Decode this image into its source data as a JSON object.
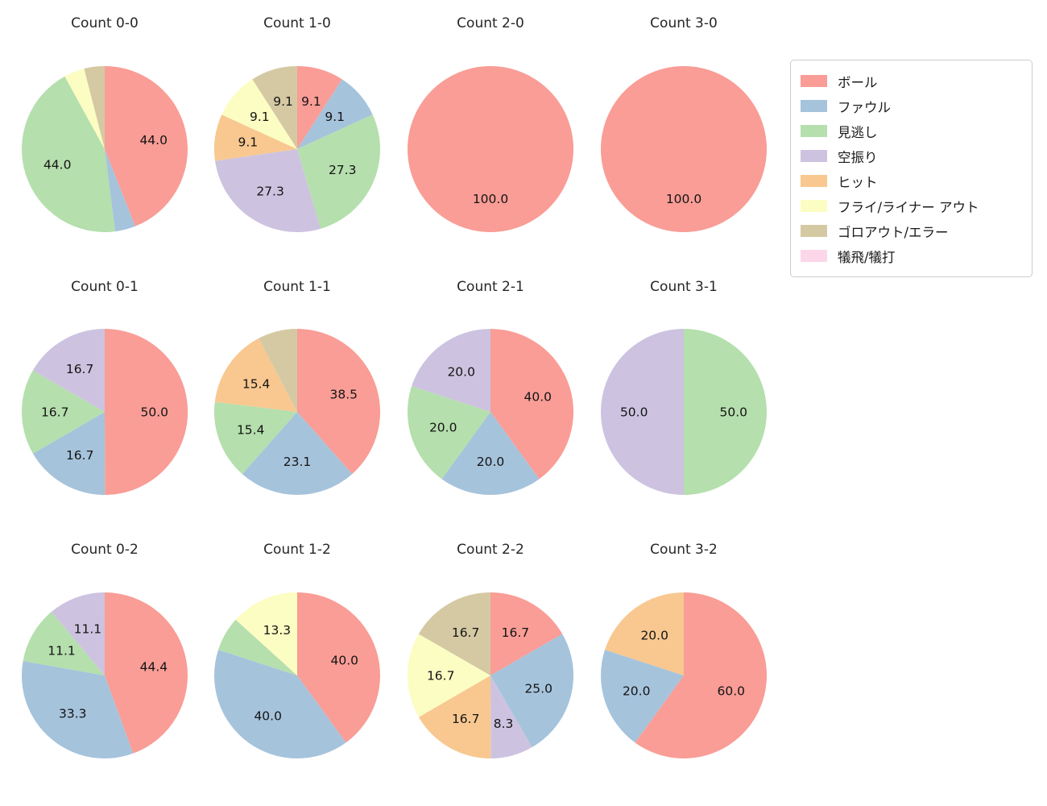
{
  "page": {
    "background": "#ffffff"
  },
  "legend": {
    "position": "top-right",
    "items": [
      {
        "label": "ボール",
        "color": "#f99d96"
      },
      {
        "label": "ファウル",
        "color": "#a6c3dc"
      },
      {
        "label": "見逃し",
        "color": "#b5dfad"
      },
      {
        "label": "空振り",
        "color": "#cdc3e0"
      },
      {
        "label": "ヒット",
        "color": "#f8c890"
      },
      {
        "label": "フライ/ライナー アウト",
        "color": "#fcfdc2"
      },
      {
        "label": "ゴロアウト/エラー",
        "color": "#d5c9a3"
      },
      {
        "label": "犠飛/犠打",
        "color": "#fcd7e9"
      }
    ]
  },
  "chart_data": [
    {
      "type": "pie",
      "id": "count-0-0",
      "title": "Count 0-0",
      "units": "percent",
      "start_angle": "top",
      "direction": "clockwise",
      "slices": [
        {
          "category": "ボール",
          "value": 44.0,
          "label": "44.0"
        },
        {
          "category": "ファウル",
          "value": 4.0,
          "label": ""
        },
        {
          "category": "見逃し",
          "value": 44.0,
          "label": "44.0"
        },
        {
          "category": "フライ/ライナー アウト",
          "value": 4.0,
          "label": ""
        },
        {
          "category": "ゴロアウト/エラー",
          "value": 4.0,
          "label": ""
        }
      ]
    },
    {
      "type": "pie",
      "id": "count-1-0",
      "title": "Count 1-0",
      "units": "percent",
      "start_angle": "top",
      "direction": "clockwise",
      "slices": [
        {
          "category": "ボール",
          "value": 9.1,
          "label": "9.1"
        },
        {
          "category": "ファウル",
          "value": 9.1,
          "label": "9.1"
        },
        {
          "category": "見逃し",
          "value": 27.3,
          "label": "27.3"
        },
        {
          "category": "空振り",
          "value": 27.3,
          "label": "27.3"
        },
        {
          "category": "ヒット",
          "value": 9.1,
          "label": "9.1"
        },
        {
          "category": "フライ/ライナー アウト",
          "value": 9.1,
          "label": "9.1"
        },
        {
          "category": "ゴロアウト/エラー",
          "value": 9.1,
          "label": "9.1"
        }
      ]
    },
    {
      "type": "pie",
      "id": "count-2-0",
      "title": "Count 2-0",
      "units": "percent",
      "start_angle": "top",
      "direction": "clockwise",
      "slices": [
        {
          "category": "ボール",
          "value": 100.0,
          "label": "100.0"
        }
      ]
    },
    {
      "type": "pie",
      "id": "count-3-0",
      "title": "Count 3-0",
      "units": "percent",
      "start_angle": "top",
      "direction": "clockwise",
      "slices": [
        {
          "category": "ボール",
          "value": 100.0,
          "label": "100.0"
        }
      ]
    },
    {
      "type": "pie",
      "id": "count-0-1",
      "title": "Count 0-1",
      "units": "percent",
      "start_angle": "top",
      "direction": "clockwise",
      "slices": [
        {
          "category": "ボール",
          "value": 50.0,
          "label": "50.0"
        },
        {
          "category": "ファウル",
          "value": 16.7,
          "label": "16.7"
        },
        {
          "category": "見逃し",
          "value": 16.7,
          "label": "16.7"
        },
        {
          "category": "空振り",
          "value": 16.7,
          "label": "16.7"
        }
      ]
    },
    {
      "type": "pie",
      "id": "count-1-1",
      "title": "Count 1-1",
      "units": "percent",
      "start_angle": "top",
      "direction": "clockwise",
      "slices": [
        {
          "category": "ボール",
          "value": 38.5,
          "label": "38.5"
        },
        {
          "category": "ファウル",
          "value": 23.1,
          "label": "23.1"
        },
        {
          "category": "見逃し",
          "value": 15.4,
          "label": "15.4"
        },
        {
          "category": "ヒット",
          "value": 15.4,
          "label": "15.4"
        },
        {
          "category": "ゴロアウト/エラー",
          "value": 7.7,
          "label": ""
        }
      ]
    },
    {
      "type": "pie",
      "id": "count-2-1",
      "title": "Count 2-1",
      "units": "percent",
      "start_angle": "top",
      "direction": "clockwise",
      "slices": [
        {
          "category": "ボール",
          "value": 40.0,
          "label": "40.0"
        },
        {
          "category": "ファウル",
          "value": 20.0,
          "label": "20.0"
        },
        {
          "category": "見逃し",
          "value": 20.0,
          "label": "20.0"
        },
        {
          "category": "空振り",
          "value": 20.0,
          "label": "20.0"
        }
      ]
    },
    {
      "type": "pie",
      "id": "count-3-1",
      "title": "Count 3-1",
      "units": "percent",
      "start_angle": "top",
      "direction": "clockwise",
      "slices": [
        {
          "category": "見逃し",
          "value": 50.0,
          "label": "50.0"
        },
        {
          "category": "空振り",
          "value": 50.0,
          "label": "50.0"
        }
      ]
    },
    {
      "type": "pie",
      "id": "count-0-2",
      "title": "Count 0-2",
      "units": "percent",
      "start_angle": "top",
      "direction": "clockwise",
      "slices": [
        {
          "category": "ボール",
          "value": 44.4,
          "label": "44.4"
        },
        {
          "category": "ファウル",
          "value": 33.3,
          "label": "33.3"
        },
        {
          "category": "見逃し",
          "value": 11.1,
          "label": "11.1"
        },
        {
          "category": "空振り",
          "value": 11.1,
          "label": "11.1"
        }
      ]
    },
    {
      "type": "pie",
      "id": "count-1-2",
      "title": "Count 1-2",
      "units": "percent",
      "start_angle": "top",
      "direction": "clockwise",
      "slices": [
        {
          "category": "ボール",
          "value": 40.0,
          "label": "40.0"
        },
        {
          "category": "ファウル",
          "value": 40.0,
          "label": "40.0"
        },
        {
          "category": "見逃し",
          "value": 6.7,
          "label": ""
        },
        {
          "category": "フライ/ライナー アウト",
          "value": 13.3,
          "label": "13.3"
        }
      ]
    },
    {
      "type": "pie",
      "id": "count-2-2",
      "title": "Count 2-2",
      "units": "percent",
      "start_angle": "top",
      "direction": "clockwise",
      "slices": [
        {
          "category": "ボール",
          "value": 16.7,
          "label": "16.7"
        },
        {
          "category": "ファウル",
          "value": 25.0,
          "label": "25.0"
        },
        {
          "category": "空振り",
          "value": 8.3,
          "label": "8.3"
        },
        {
          "category": "ヒット",
          "value": 16.7,
          "label": "16.7"
        },
        {
          "category": "フライ/ライナー アウト",
          "value": 16.7,
          "label": "16.7"
        },
        {
          "category": "ゴロアウト/エラー",
          "value": 16.7,
          "label": "16.7"
        }
      ]
    },
    {
      "type": "pie",
      "id": "count-3-2",
      "title": "Count 3-2",
      "units": "percent",
      "start_angle": "top",
      "direction": "clockwise",
      "slices": [
        {
          "category": "ボール",
          "value": 60.0,
          "label": "60.0"
        },
        {
          "category": "ファウル",
          "value": 20.0,
          "label": "20.0"
        },
        {
          "category": "ヒット",
          "value": 20.0,
          "label": "20.0"
        }
      ]
    }
  ]
}
